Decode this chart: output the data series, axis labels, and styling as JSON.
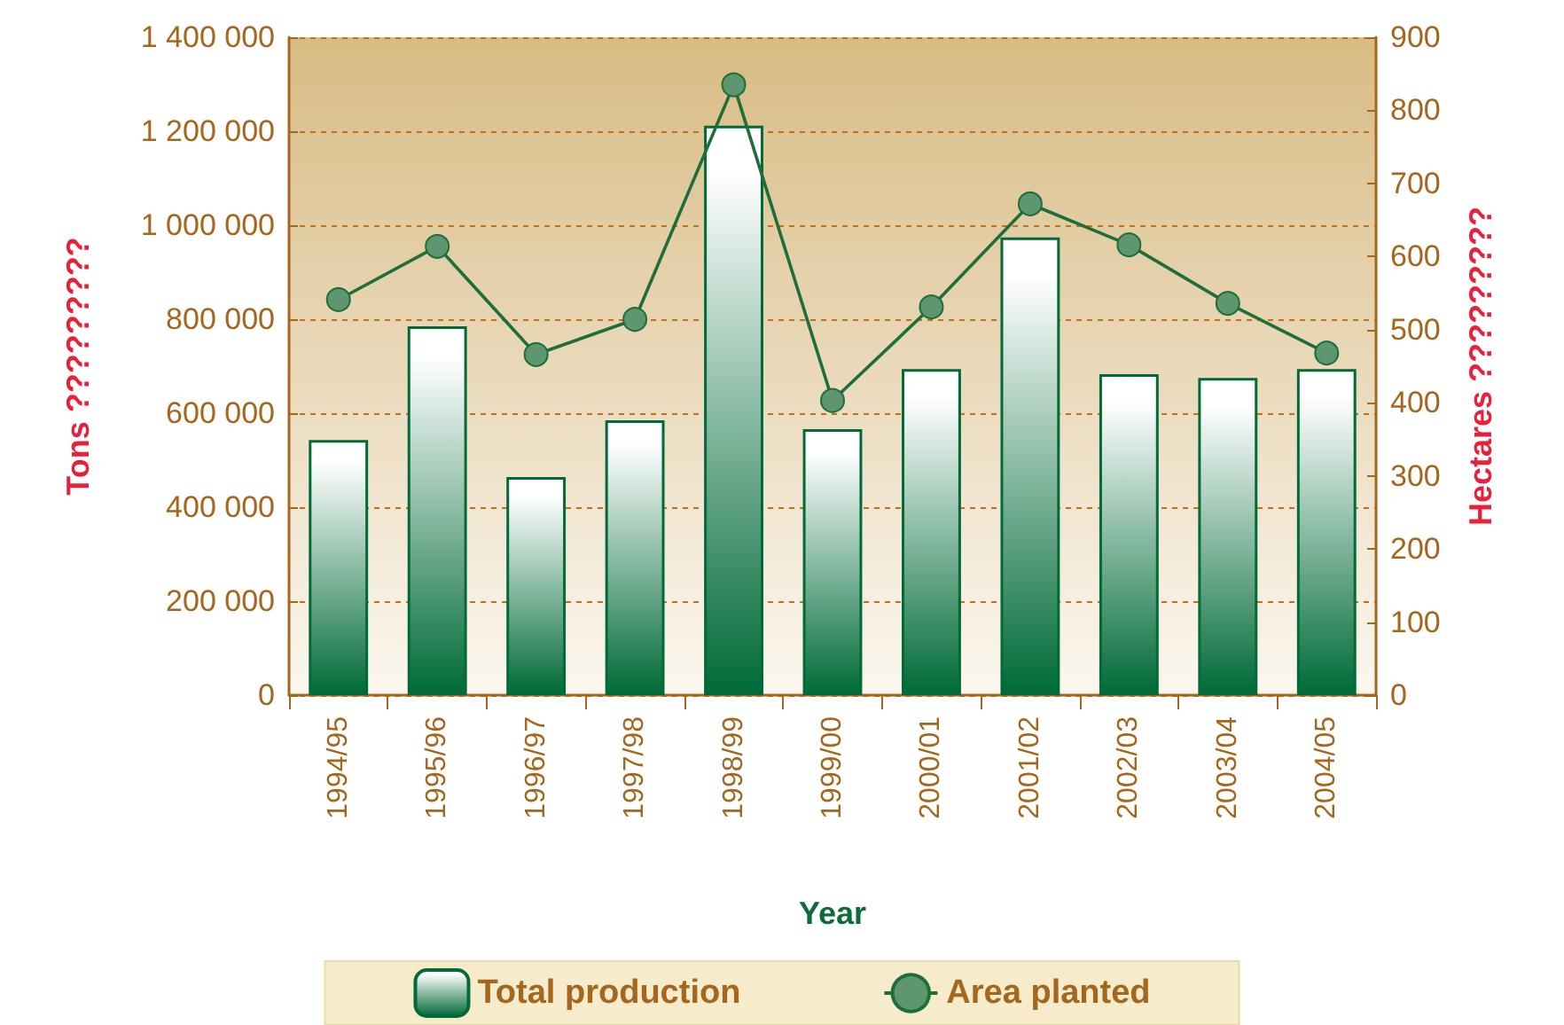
{
  "chart_data": {
    "type": "bar",
    "xlabel": "Year",
    "ylabel": "Tons ?????????",
    "y2label": "Hectares ?????????",
    "categories": [
      "1994/95",
      "1995/96",
      "1996/97",
      "1997/98",
      "1998/99",
      "1999/00",
      "2000/01",
      "2001/02",
      "2002/03",
      "2003/04",
      "2004/05"
    ],
    "series": [
      {
        "name": "Total production",
        "color": "#006a38",
        "values": [
          543000,
          785000,
          464000,
          585000,
          1212000,
          566000,
          694000,
          974000,
          683000,
          675000,
          694000
        ]
      },
      {
        "name": "Area planted",
        "type": "line",
        "axis": "y2",
        "color": "#1e6e3c",
        "values": [
          541,
          614,
          466,
          514,
          835,
          403,
          531,
          672,
          616,
          536,
          468
        ]
      }
    ],
    "ylim": [
      0,
      1400000
    ],
    "yticks": [
      {
        "value": 0,
        "label": "0"
      },
      {
        "value": 200000,
        "label": "200 000"
      },
      {
        "value": 400000,
        "label": "400 000"
      },
      {
        "value": 600000,
        "label": "600 000"
      },
      {
        "value": 800000,
        "label": "800 000"
      },
      {
        "value": 1000000,
        "label": "1 000 000"
      },
      {
        "value": 1200000,
        "label": "1 200 000"
      },
      {
        "value": 1400000,
        "label": "1 400 000"
      }
    ],
    "y2lim": [
      0,
      900
    ],
    "y2ticks": [
      0,
      100,
      200,
      300,
      400,
      500,
      600,
      700,
      800,
      900
    ],
    "grid": "y",
    "legend": "bottom",
    "marker": "circle",
    "line_style": "solid"
  }
}
